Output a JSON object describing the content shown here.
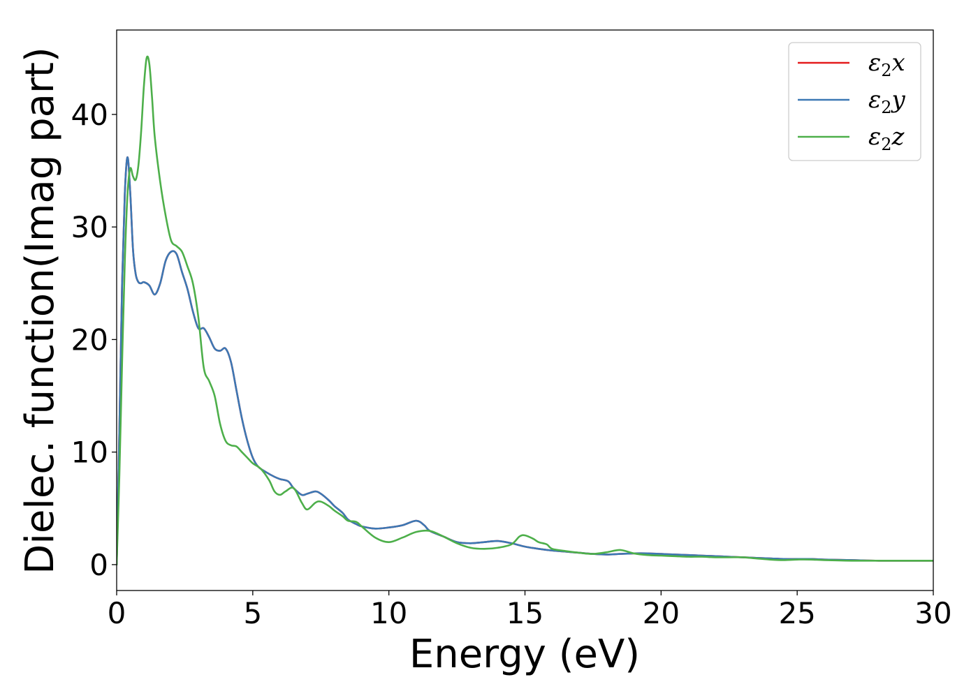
{
  "chart_data": {
    "type": "line",
    "title": "",
    "xlabel": "Energy (eV)",
    "ylabel": "Dielec. function(Imag part)",
    "xlim": [
      0,
      30
    ],
    "ylim": [
      -2.3,
      47.5
    ],
    "xticks": [
      0,
      5,
      10,
      15,
      20,
      25,
      30
    ],
    "yticks": [
      0,
      10,
      20,
      30,
      40
    ],
    "grid": false,
    "legend_position": "top-right",
    "series": [
      {
        "name": "ε2x",
        "legend_main": "ε",
        "legend_sub": "2",
        "legend_suffix": "x",
        "color": "#e41a1c",
        "x": [
          0,
          0.1,
          0.2,
          0.3,
          0.4,
          0.5,
          0.6,
          0.7,
          0.8,
          0.9,
          1.0,
          1.2,
          1.4,
          1.6,
          1.8,
          2.0,
          2.2,
          2.4,
          2.6,
          2.8,
          3.0,
          3.2,
          3.4,
          3.6,
          3.8,
          4.0,
          4.2,
          4.4,
          4.6,
          4.8,
          5.0,
          5.2,
          5.5,
          5.8,
          6.0,
          6.3,
          6.5,
          6.8,
          7.0,
          7.3,
          7.5,
          7.8,
          8.0,
          8.3,
          8.5,
          8.8,
          9.0,
          9.5,
          10.0,
          10.5,
          11.0,
          11.3,
          11.5,
          12.0,
          12.5,
          13.0,
          13.5,
          14.0,
          14.5,
          15.0,
          15.5,
          16.0,
          16.5,
          17.0,
          17.5,
          18.0,
          18.5,
          19.0,
          19.5,
          20.0,
          20.5,
          21.0,
          21.5,
          22.0,
          22.5,
          23.0,
          23.5,
          24.0,
          24.5,
          25.0,
          25.5,
          26.0,
          27.0,
          28.0,
          29.0,
          30.0
        ],
        "values": [
          0,
          12,
          25,
          33,
          36.2,
          33,
          28,
          25.8,
          25.1,
          25.0,
          25.1,
          24.8,
          24.0,
          25.0,
          27.0,
          27.8,
          27.6,
          26.0,
          24.5,
          22.5,
          21.0,
          21.0,
          20.2,
          19.2,
          19.0,
          19.2,
          18.0,
          15.5,
          13.0,
          11.0,
          9.5,
          8.7,
          8.2,
          7.8,
          7.6,
          7.4,
          6.8,
          6.2,
          6.3,
          6.5,
          6.3,
          5.7,
          5.2,
          4.6,
          4.0,
          3.6,
          3.4,
          3.2,
          3.3,
          3.5,
          3.9,
          3.5,
          3.0,
          2.5,
          2.0,
          1.9,
          2.0,
          2.1,
          1.9,
          1.6,
          1.4,
          1.25,
          1.15,
          1.05,
          0.95,
          0.9,
          0.95,
          1.0,
          1.0,
          0.95,
          0.9,
          0.85,
          0.8,
          0.75,
          0.7,
          0.65,
          0.6,
          0.55,
          0.5,
          0.5,
          0.5,
          0.45,
          0.4,
          0.35,
          0.35,
          0.35
        ]
      },
      {
        "name": "ε2y",
        "legend_main": "ε",
        "legend_sub": "2",
        "legend_suffix": "y",
        "color": "#3c78b4",
        "x": [
          0,
          0.1,
          0.2,
          0.3,
          0.4,
          0.5,
          0.6,
          0.7,
          0.8,
          0.9,
          1.0,
          1.2,
          1.4,
          1.6,
          1.8,
          2.0,
          2.2,
          2.4,
          2.6,
          2.8,
          3.0,
          3.2,
          3.4,
          3.6,
          3.8,
          4.0,
          4.2,
          4.4,
          4.6,
          4.8,
          5.0,
          5.2,
          5.5,
          5.8,
          6.0,
          6.3,
          6.5,
          6.8,
          7.0,
          7.3,
          7.5,
          7.8,
          8.0,
          8.3,
          8.5,
          8.8,
          9.0,
          9.5,
          10.0,
          10.5,
          11.0,
          11.3,
          11.5,
          12.0,
          12.5,
          13.0,
          13.5,
          14.0,
          14.5,
          15.0,
          15.5,
          16.0,
          16.5,
          17.0,
          17.5,
          18.0,
          18.5,
          19.0,
          19.5,
          20.0,
          20.5,
          21.0,
          21.5,
          22.0,
          22.5,
          23.0,
          23.5,
          24.0,
          24.5,
          25.0,
          25.5,
          26.0,
          27.0,
          28.0,
          29.0,
          30.0
        ],
        "values": [
          0,
          12,
          25,
          33,
          36.2,
          33,
          28,
          25.8,
          25.1,
          25.0,
          25.1,
          24.8,
          24.0,
          25.0,
          27.0,
          27.8,
          27.6,
          26.0,
          24.5,
          22.5,
          21.0,
          21.0,
          20.2,
          19.2,
          19.0,
          19.2,
          18.0,
          15.5,
          13.0,
          11.0,
          9.5,
          8.7,
          8.2,
          7.8,
          7.6,
          7.4,
          6.8,
          6.2,
          6.3,
          6.5,
          6.3,
          5.7,
          5.2,
          4.6,
          4.0,
          3.6,
          3.4,
          3.2,
          3.3,
          3.5,
          3.9,
          3.5,
          3.0,
          2.5,
          2.0,
          1.9,
          2.0,
          2.1,
          1.9,
          1.6,
          1.4,
          1.25,
          1.15,
          1.05,
          0.95,
          0.9,
          0.95,
          1.0,
          1.0,
          0.95,
          0.9,
          0.85,
          0.8,
          0.75,
          0.7,
          0.65,
          0.6,
          0.55,
          0.5,
          0.5,
          0.5,
          0.45,
          0.4,
          0.35,
          0.35,
          0.35
        ]
      },
      {
        "name": "ε2z",
        "legend_main": "ε",
        "legend_sub": "2",
        "legend_suffix": "z",
        "color": "#4daf4a",
        "x": [
          0,
          0.1,
          0.2,
          0.3,
          0.4,
          0.5,
          0.6,
          0.7,
          0.8,
          0.9,
          1.0,
          1.1,
          1.2,
          1.3,
          1.4,
          1.6,
          1.8,
          2.0,
          2.2,
          2.4,
          2.6,
          2.8,
          3.0,
          3.2,
          3.4,
          3.6,
          3.8,
          4.0,
          4.2,
          4.4,
          4.6,
          4.8,
          5.0,
          5.3,
          5.6,
          5.8,
          6.0,
          6.2,
          6.5,
          6.8,
          7.0,
          7.3,
          7.5,
          7.8,
          8.0,
          8.3,
          8.5,
          8.8,
          9.0,
          9.5,
          10.0,
          10.5,
          11.0,
          11.5,
          12.0,
          12.5,
          13.0,
          13.5,
          14.0,
          14.5,
          14.8,
          15.0,
          15.3,
          15.5,
          15.8,
          16.0,
          16.5,
          17.0,
          17.5,
          18.0,
          18.5,
          19.0,
          19.5,
          20.0,
          20.5,
          21.0,
          21.5,
          22.0,
          22.5,
          23.0,
          23.5,
          24.0,
          24.5,
          25.0,
          25.5,
          26.0,
          27.0,
          28.0,
          29.0,
          30.0
        ],
        "values": [
          0,
          8,
          18,
          27,
          33,
          35.2,
          34.5,
          34.2,
          35.5,
          38.5,
          42.5,
          45.0,
          44.5,
          41.5,
          38.0,
          34.0,
          31.0,
          28.8,
          28.3,
          27.8,
          26.5,
          25.0,
          22.0,
          17.5,
          16.3,
          15.0,
          12.5,
          11.0,
          10.6,
          10.5,
          10.0,
          9.5,
          9.0,
          8.5,
          7.5,
          6.5,
          6.2,
          6.5,
          6.8,
          5.5,
          4.9,
          5.5,
          5.6,
          5.2,
          4.8,
          4.3,
          3.9,
          3.8,
          3.4,
          2.4,
          2.0,
          2.4,
          2.9,
          3.0,
          2.5,
          1.9,
          1.5,
          1.4,
          1.5,
          1.8,
          2.5,
          2.6,
          2.3,
          2.0,
          1.8,
          1.4,
          1.2,
          1.05,
          0.95,
          1.1,
          1.3,
          1.0,
          0.85,
          0.8,
          0.75,
          0.7,
          0.7,
          0.65,
          0.65,
          0.65,
          0.55,
          0.45,
          0.4,
          0.45,
          0.45,
          0.4,
          0.35,
          0.35,
          0.35,
          0.35
        ]
      }
    ]
  }
}
